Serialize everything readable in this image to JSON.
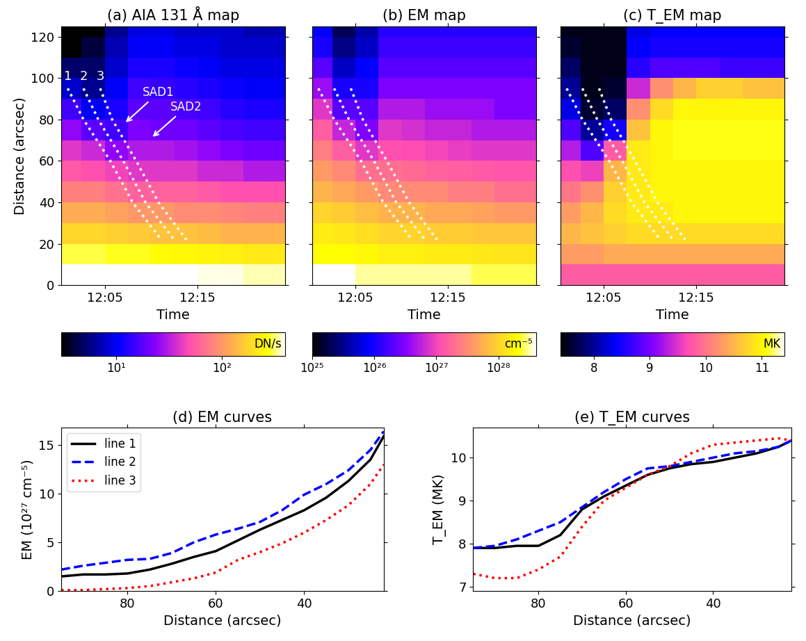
{
  "chart_data": [
    {
      "type": "heatmap",
      "title": "(a) AIA 131 Å map",
      "xlabel": "Time",
      "ylabel": "Distance (arcsec)",
      "xlim": [
        0.3,
        24.5
      ],
      "xticks": [
        {
          "value": 5,
          "label": "12:05"
        },
        {
          "value": 15,
          "label": "12:15"
        }
      ],
      "ylim": [
        0,
        125
      ],
      "yticks": [
        0,
        20,
        40,
        60,
        80,
        100,
        120
      ],
      "tick_labels": true,
      "x_edges": [
        0.3,
        2.5,
        5,
        7.5,
        10,
        12.5,
        15,
        17.5,
        20,
        22.5,
        24.5
      ],
      "y_edges": [
        0,
        10,
        20,
        30,
        40,
        50,
        60,
        70,
        80,
        90,
        100,
        110,
        120,
        125
      ],
      "cells": [
        [
          500,
          500,
          450,
          450,
          400,
          400,
          380,
          380,
          350,
          350
        ],
        [
          300,
          300,
          280,
          280,
          260,
          250,
          240,
          230,
          220,
          220
        ],
        [
          180,
          180,
          170,
          160,
          150,
          150,
          140,
          130,
          130,
          130
        ],
        [
          120,
          120,
          110,
          100,
          100,
          90,
          90,
          85,
          80,
          80
        ],
        [
          80,
          80,
          70,
          60,
          60,
          60,
          55,
          50,
          50,
          50
        ],
        [
          55,
          50,
          45,
          40,
          40,
          40,
          35,
          35,
          30,
          30
        ],
        [
          40,
          35,
          25,
          30,
          30,
          28,
          25,
          22,
          20,
          20
        ],
        [
          25,
          18,
          15,
          22,
          20,
          20,
          18,
          16,
          15,
          15
        ],
        [
          15,
          10,
          12,
          18,
          18,
          16,
          15,
          13,
          12,
          12
        ],
        [
          8,
          6,
          10,
          15,
          14,
          13,
          12,
          11,
          10,
          10
        ],
        [
          5,
          5,
          8,
          12,
          12,
          11,
          10,
          9,
          9,
          9
        ],
        [
          3,
          4,
          7,
          10,
          10,
          9,
          9,
          8,
          8,
          8
        ],
        [
          3,
          3,
          6,
          9,
          9,
          8,
          8,
          8,
          7,
          7
        ]
      ],
      "colorbar": {
        "range": [
          3,
          400
        ],
        "log": true,
        "label": "DN/s",
        "ticks": [
          {
            "value": 10,
            "label": "10¹"
          },
          {
            "value": 100,
            "label": "10²"
          }
        ]
      },
      "paths": [
        {
          "label": "1",
          "color": "white",
          "line_style": "dotted",
          "x": [
            1.0,
            2.7,
            5.6,
            8.0,
            11.1
          ],
          "y": [
            95,
            80,
            60,
            40,
            22
          ]
        },
        {
          "label": "2",
          "color": "white",
          "line_style": "dotted",
          "x": [
            2.7,
            4.3,
            7.0,
            9.4,
            12.5
          ],
          "y": [
            95,
            80,
            60,
            40,
            22
          ]
        },
        {
          "label": "3",
          "color": "white",
          "line_style": "dotted",
          "x": [
            4.5,
            5.8,
            8.4,
            10.8,
            13.8
          ],
          "y": [
            95,
            80,
            60,
            40,
            22
          ]
        }
      ],
      "annotations": [
        {
          "text": "SAD1",
          "x": 10.8,
          "y": 93,
          "arrow_x": 7.1,
          "arrow_y": 78
        },
        {
          "text": "SAD2",
          "x": 13.8,
          "y": 86,
          "arrow_x": 10.0,
          "arrow_y": 71
        }
      ]
    },
    {
      "type": "heatmap",
      "title": "(b) EM map",
      "xlabel": "Time",
      "xlim": [
        0.3,
        24.5
      ],
      "xticks": [
        {
          "value": 5,
          "label": "12:05"
        },
        {
          "value": 15,
          "label": "12:15"
        }
      ],
      "ylim": [
        0,
        125
      ],
      "yticks": [
        0,
        20,
        40,
        60,
        80,
        100,
        120
      ],
      "tick_labels": "x",
      "x_edges": [
        0.3,
        2.5,
        5,
        7.5,
        10,
        12.5,
        15,
        17.5,
        20,
        22.5,
        24.5
      ],
      "y_edges": [
        0,
        10,
        20,
        30,
        40,
        50,
        60,
        70,
        80,
        90,
        100,
        110,
        120,
        125
      ],
      "cells": [
        [
          4e+28,
          4e+28,
          3e+28,
          3e+28,
          3e+28,
          3e+28,
          3e+28,
          2.5e+28,
          2.5e+28,
          2.5e+28
        ],
        [
          2e+28,
          2e+28,
          1.8e+28,
          1.6e+28,
          1.6e+28,
          1.5e+28,
          1.5e+28,
          1.4e+28,
          1.3e+28,
          1.3e+28
        ],
        [
          1.5e+28,
          1.4e+28,
          1.2e+28,
          1e+28,
          1e+28,
          9e+27,
          9e+27,
          8e+27,
          8e+27,
          8e+27
        ],
        [
          1e+28,
          9e+27,
          7e+27,
          6e+27,
          6e+27,
          5e+27,
          5e+27,
          4.5e+27,
          4e+27,
          4e+27
        ],
        [
          6e+27,
          5e+27,
          4e+27,
          3e+27,
          3e+27,
          3e+27,
          2.5e+27,
          2.5e+27,
          2e+27,
          2e+27
        ],
        [
          4e+27,
          3e+27,
          2e+27,
          2e+27,
          1.8e+27,
          1.6e+27,
          1.5e+27,
          1.4e+27,
          1.3e+27,
          1.3e+27
        ],
        [
          2.5e+27,
          1.5e+27,
          8e+26,
          1.2e+27,
          1.1e+27,
          1e+27,
          9e+26,
          8e+26,
          8e+26,
          8e+26
        ],
        [
          1.5e+27,
          6e+26,
          3e+26,
          8e+26,
          7e+26,
          6e+26,
          6e+26,
          5e+26,
          5e+26,
          5e+26
        ],
        [
          8e+26,
          2e+26,
          2e+26,
          5e+26,
          5e+26,
          4e+26,
          4e+26,
          4e+26,
          3e+26,
          3e+26
        ],
        [
          4e+26,
          1e+26,
          1e+26,
          3e+26,
          3e+26,
          3e+26,
          3e+26,
          3e+26,
          3e+26,
          3e+26
        ],
        [
          2e+26,
          5e+25,
          8e+25,
          2e+26,
          2e+26,
          2e+26,
          2e+26,
          2e+26,
          2e+26,
          2e+26
        ],
        [
          1e+26,
          3e+25,
          5e+25,
          1.5e+26,
          1.5e+26,
          1.5e+26,
          1.5e+26,
          1.5e+26,
          1.5e+26,
          1.5e+26
        ],
        [
          8e+25,
          2e+25,
          4e+25,
          1.2e+26,
          1.2e+26,
          1.2e+26,
          1.2e+26,
          1.2e+26,
          1.2e+26,
          1.2e+26
        ]
      ],
      "colorbar": {
        "range": [
          1e+25,
          4e+28
        ],
        "log": true,
        "label": "cm⁻⁵",
        "ticks": [
          {
            "value": 1e+25,
            "label": "10²⁵"
          },
          {
            "value": 1e+26,
            "label": "10²⁶"
          },
          {
            "value": 1e+27,
            "label": "10²⁷"
          },
          {
            "value": 1e+28,
            "label": "10²⁸"
          }
        ]
      },
      "paths": [
        {
          "color": "white",
          "line_style": "dotted",
          "x": [
            1.0,
            2.7,
            5.6,
            8.0,
            11.1
          ],
          "y": [
            95,
            80,
            60,
            40,
            22
          ]
        },
        {
          "color": "white",
          "line_style": "dotted",
          "x": [
            2.7,
            4.3,
            7.0,
            9.4,
            12.5
          ],
          "y": [
            95,
            80,
            60,
            40,
            22
          ]
        },
        {
          "color": "white",
          "line_style": "dotted",
          "x": [
            4.5,
            5.8,
            8.4,
            10.8,
            13.8
          ],
          "y": [
            95,
            80,
            60,
            40,
            22
          ]
        }
      ]
    },
    {
      "type": "heatmap",
      "title": "(c) T_EM map",
      "xlabel": "Time",
      "xlim": [
        0.3,
        24.5
      ],
      "xticks": [
        {
          "value": 5,
          "label": "12:05"
        },
        {
          "value": 15,
          "label": "12:15"
        }
      ],
      "ylim": [
        0,
        125
      ],
      "yticks": [
        0,
        20,
        40,
        60,
        80,
        100,
        120
      ],
      "tick_labels": "x",
      "x_edges": [
        0.3,
        2.5,
        5,
        7.5,
        10,
        12.5,
        15,
        17.5,
        20,
        22.5,
        24.5
      ],
      "y_edges": [
        0,
        10,
        20,
        30,
        40,
        50,
        60,
        70,
        80,
        90,
        100,
        110,
        120,
        125
      ],
      "cells": [
        [
          9.8,
          9.8,
          9.8,
          9.8,
          9.8,
          9.8,
          9.8,
          9.8,
          9.8,
          9.8
        ],
        [
          10.3,
          10.3,
          10.4,
          10.4,
          10.4,
          10.4,
          10.4,
          10.4,
          10.4,
          10.4
        ],
        [
          10.5,
          10.6,
          10.7,
          10.8,
          10.8,
          10.8,
          10.8,
          10.8,
          10.8,
          10.8
        ],
        [
          10.3,
          10.5,
          10.8,
          10.9,
          10.9,
          11.0,
          11.0,
          11.0,
          11.0,
          11.0
        ],
        [
          10.0,
          10.2,
          10.7,
          10.9,
          11.0,
          11.0,
          11.0,
          11.0,
          11.0,
          11.0
        ],
        [
          9.7,
          9.6,
          10.5,
          10.9,
          11.0,
          11.0,
          11.0,
          11.0,
          11.0,
          11.0
        ],
        [
          9.3,
          8.8,
          9.8,
          10.9,
          11.0,
          11.1,
          11.1,
          11.1,
          11.1,
          11.1
        ],
        [
          8.8,
          8.0,
          8.5,
          10.6,
          11.0,
          11.1,
          11.1,
          11.1,
          11.1,
          11.1
        ],
        [
          8.3,
          7.6,
          7.8,
          10.2,
          10.8,
          11.0,
          11.0,
          11.0,
          11.0,
          11.0
        ],
        [
          8.0,
          7.5,
          7.6,
          9.4,
          10.2,
          10.5,
          10.7,
          10.7,
          10.6,
          10.6
        ],
        [
          7.8,
          7.5,
          7.5,
          8.6,
          8.8,
          8.8,
          8.8,
          8.7,
          8.7,
          8.7
        ],
        [
          7.6,
          7.5,
          7.5,
          8.4,
          8.5,
          8.5,
          8.5,
          8.5,
          8.5,
          8.5
        ],
        [
          7.5,
          7.5,
          7.5,
          8.3,
          8.4,
          8.4,
          8.4,
          8.4,
          8.4,
          8.4
        ]
      ],
      "colorbar": {
        "range": [
          7.4,
          11.4
        ],
        "log": false,
        "label": "MK",
        "ticks": [
          8,
          9,
          10,
          11
        ]
      },
      "paths": [
        {
          "color": "white",
          "line_style": "dotted",
          "x": [
            1.0,
            2.7,
            5.6,
            8.0,
            11.1
          ],
          "y": [
            95,
            80,
            60,
            40,
            22
          ]
        },
        {
          "color": "white",
          "line_style": "dotted",
          "x": [
            2.7,
            4.3,
            7.0,
            9.4,
            12.5
          ],
          "y": [
            95,
            80,
            60,
            40,
            22
          ]
        },
        {
          "color": "white",
          "line_style": "dotted",
          "x": [
            4.5,
            5.8,
            8.4,
            10.8,
            13.8
          ],
          "y": [
            95,
            80,
            60,
            40,
            22
          ]
        }
      ]
    },
    {
      "type": "line",
      "title": "(d) EM curves",
      "xlabel": "Distance (arcsec)",
      "ylabel": "EM (10²⁷ cm⁻⁵)",
      "xlim": [
        95,
        22
      ],
      "xticks": [
        80,
        60,
        40
      ],
      "ylim": [
        0,
        16.8
      ],
      "yticks": [
        0,
        5,
        10,
        15
      ],
      "legend": "upper left",
      "x": [
        95,
        90,
        85,
        80,
        75,
        70,
        65,
        60,
        55,
        50,
        45,
        40,
        35,
        30,
        25,
        22
      ],
      "series": [
        {
          "name": "line 1",
          "color": "black",
          "line_style": "solid",
          "values": [
            1.5,
            1.7,
            1.7,
            1.8,
            2.2,
            2.8,
            3.5,
            4.1,
            5.2,
            6.3,
            7.3,
            8.3,
            9.6,
            11.3,
            13.5,
            15.9
          ]
        },
        {
          "name": "line 2",
          "color": "blue",
          "line_style": "dashed",
          "values": [
            2.2,
            2.6,
            2.9,
            3.2,
            3.3,
            3.9,
            5.0,
            5.8,
            6.4,
            7.1,
            8.3,
            9.9,
            11.0,
            12.4,
            14.5,
            16.4
          ]
        },
        {
          "name": "line 3",
          "color": "red",
          "line_style": "dotted",
          "values": [
            0.1,
            0.1,
            0.2,
            0.3,
            0.5,
            0.9,
            1.3,
            1.9,
            3.2,
            4.0,
            4.9,
            6.0,
            7.3,
            8.8,
            11.0,
            13.0
          ]
        }
      ]
    },
    {
      "type": "line",
      "title": "(e) T_EM curves",
      "xlabel": "Distance (arcsec)",
      "ylabel": "T_EM (MK)",
      "xlim": [
        95,
        22
      ],
      "xticks": [
        80,
        60,
        40
      ],
      "ylim": [
        6.9,
        10.7
      ],
      "yticks": [
        7,
        8,
        9,
        10
      ],
      "x": [
        95,
        90,
        85,
        80,
        75,
        70,
        65,
        60,
        55,
        50,
        45,
        40,
        35,
        30,
        25,
        22
      ],
      "series": [
        {
          "name": "line 1",
          "color": "black",
          "line_style": "solid",
          "values": [
            7.9,
            7.9,
            7.95,
            7.95,
            8.2,
            8.8,
            9.1,
            9.35,
            9.6,
            9.75,
            9.85,
            9.9,
            10.0,
            10.1,
            10.25,
            10.4
          ]
        },
        {
          "name": "line 2",
          "color": "blue",
          "line_style": "dashed",
          "values": [
            7.9,
            7.95,
            8.1,
            8.3,
            8.5,
            8.85,
            9.2,
            9.5,
            9.75,
            9.8,
            9.9,
            10.0,
            10.1,
            10.15,
            10.25,
            10.4
          ]
        },
        {
          "name": "line 3",
          "color": "red",
          "line_style": "dotted",
          "values": [
            7.3,
            7.2,
            7.2,
            7.4,
            7.7,
            8.4,
            9.0,
            9.3,
            9.6,
            9.8,
            10.1,
            10.3,
            10.35,
            10.4,
            10.45,
            10.4
          ]
        }
      ]
    }
  ]
}
